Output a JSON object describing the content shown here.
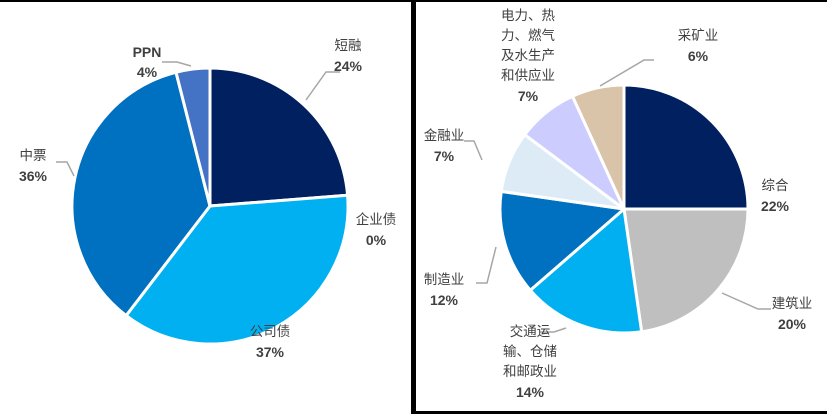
{
  "chart_data": [
    {
      "type": "pie",
      "title": "",
      "start_angle_deg": 0,
      "direction": "clockwise",
      "center": [
        210,
        206
      ],
      "radius": 138,
      "categories": [
        "短融",
        "企业债",
        "公司债",
        "中票",
        "PPN"
      ],
      "values": [
        24,
        0,
        37,
        36,
        4
      ],
      "labels": [
        "24%",
        "0%",
        "37%",
        "36%",
        "4%"
      ],
      "colors": [
        "#002060",
        "#00B0F0",
        "#00B0F0",
        "#0070C0",
        "#4472C4"
      ]
    },
    {
      "type": "pie",
      "title": "",
      "start_angle_deg": 0,
      "direction": "clockwise",
      "center": [
        208,
        209
      ],
      "radius": 124,
      "categories": [
        "综合",
        "建筑业",
        "交通运输、仓储和邮政业",
        "制造业",
        "金融业",
        "电力、热力、燃气及水生产和供应业",
        "采矿业"
      ],
      "values": [
        22,
        20,
        14,
        12,
        7,
        7,
        6
      ],
      "labels": [
        "22%",
        "20%",
        "14%",
        "12%",
        "7%",
        "7%",
        "6%"
      ],
      "colors": [
        "#002060",
        "#BFBFBF",
        "#00B0F0",
        "#0070C0",
        "#DDEBF7",
        "#CCCCFF",
        "#D9C3A9"
      ]
    }
  ],
  "left": {
    "labels": [
      {
        "name": "短融",
        "pct": "24%"
      },
      {
        "name": "企业债",
        "pct": "0%"
      },
      {
        "name": "公司债",
        "pct": "37%"
      },
      {
        "name": "中票",
        "pct": "36%"
      },
      {
        "name": "PPN",
        "pct": "4%"
      }
    ]
  },
  "right": {
    "labels": [
      {
        "name": "综合",
        "pct": "22%"
      },
      {
        "name": "建筑业",
        "pct": "20%"
      },
      {
        "name_lines": [
          "交通运",
          "输、仓储",
          "和邮政业"
        ],
        "pct": "14%"
      },
      {
        "name": "制造业",
        "pct": "12%"
      },
      {
        "name": "金融业",
        "pct": "7%"
      },
      {
        "name_lines": [
          "电力、热",
          "力、燃气",
          "及水生产",
          "和供应业"
        ],
        "pct": "7%"
      },
      {
        "name": "采矿业",
        "pct": "6%"
      }
    ]
  },
  "leader_color": "#A6A6A6",
  "separator_color": "#FFFFFF"
}
